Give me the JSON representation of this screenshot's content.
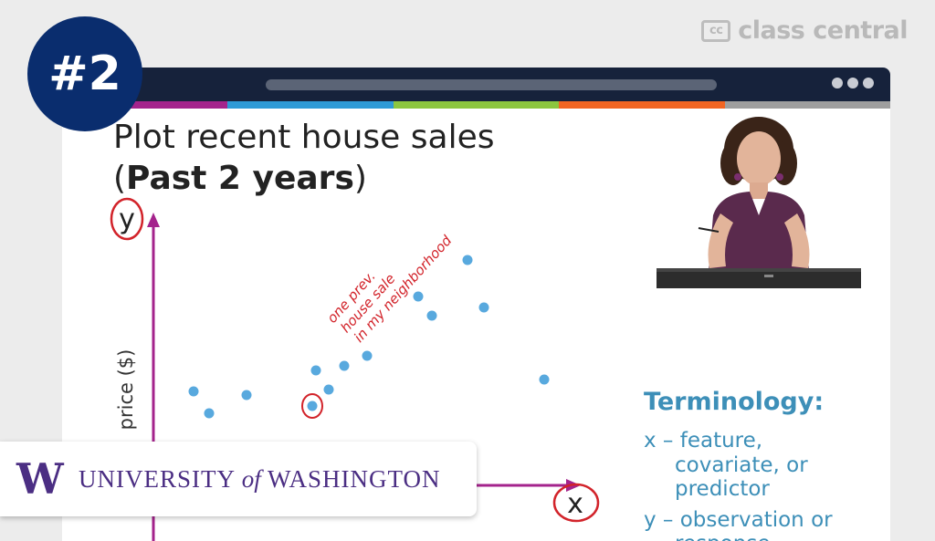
{
  "badge": {
    "label": "#2"
  },
  "brand": {
    "logo_text": "cc",
    "name": "class central"
  },
  "window": {
    "stripe_colors": [
      "#a4238c",
      "#2e9ad6",
      "#8cc63f",
      "#f26522",
      "#9e9e9e"
    ]
  },
  "slide": {
    "title": "Plot recent house sales",
    "subtitle_open": "(",
    "subtitle_bold": "Past 2 years",
    "subtitle_close": ")",
    "y_axis_letter": "y",
    "y_axis_label": "price ($)",
    "x_axis_letter": "x",
    "annotation_lines": [
      "one prev.",
      "house sale",
      "in my neighborhood"
    ],
    "points_color": "#58a9de",
    "axis_color": "#a4238c",
    "ink_color": "#d2232a"
  },
  "terminology": {
    "title": "Terminology:",
    "x_line1": "x – feature,",
    "x_line2": "covariate, or",
    "x_line3": "predictor",
    "y_line1": "y – observation or",
    "y_line2": "response"
  },
  "university": {
    "letter": "W",
    "name_part1": "UNIVERSITY",
    "name_of": "of",
    "name_part2": "WASHINGTON"
  }
}
